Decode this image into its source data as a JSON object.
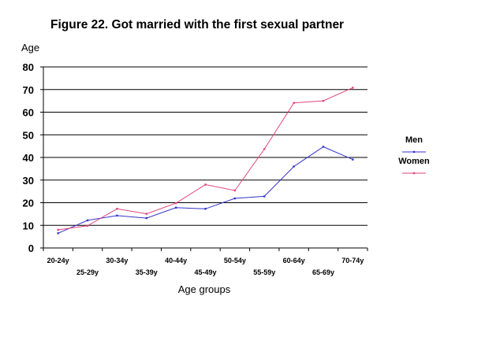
{
  "chart_data": {
    "type": "line",
    "title": "Figure 22. Got married with the first sexual partner",
    "ylabel": "Age",
    "xlabel": "Age groups",
    "categories": [
      "20-24y",
      "25-29y",
      "30-34y",
      "35-39y",
      "40-44y",
      "45-49y",
      "50-54y",
      "55-59y",
      "60-64y",
      "65-69y",
      "70-74y"
    ],
    "ylim": [
      0,
      80
    ],
    "yticks": [
      "0",
      "10",
      "20",
      "30",
      "40",
      "50",
      "60",
      "70",
      "80"
    ],
    "grid": true,
    "legend_position": "right",
    "series": [
      {
        "name": "Men",
        "color": "#3333cc",
        "values": [
          6.5,
          12.2,
          14.3,
          13.2,
          17.8,
          17.3,
          21.9,
          22.8,
          36.0,
          44.7,
          39.1
        ]
      },
      {
        "name": "Women",
        "color": "#e0457b",
        "values": [
          8.0,
          9.8,
          17.3,
          15.1,
          19.8,
          28.0,
          25.4,
          43.7,
          64.1,
          65.0,
          70.8
        ]
      }
    ]
  }
}
